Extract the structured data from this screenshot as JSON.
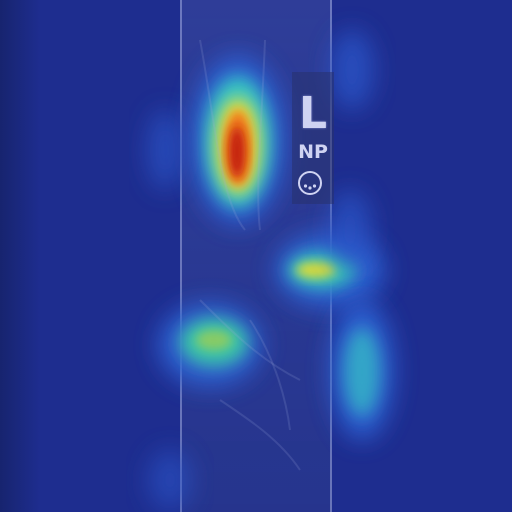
{
  "image": {
    "marker_letter": "L",
    "marker_code": "NP",
    "marker_symbol": "circle-dots-icon"
  },
  "heatmap_colors": {
    "background": "#1e2d8f",
    "low": "#3a7be0",
    "mid": "#2fc7c0",
    "high": "#f2e23a",
    "peak": "#c21a10"
  }
}
